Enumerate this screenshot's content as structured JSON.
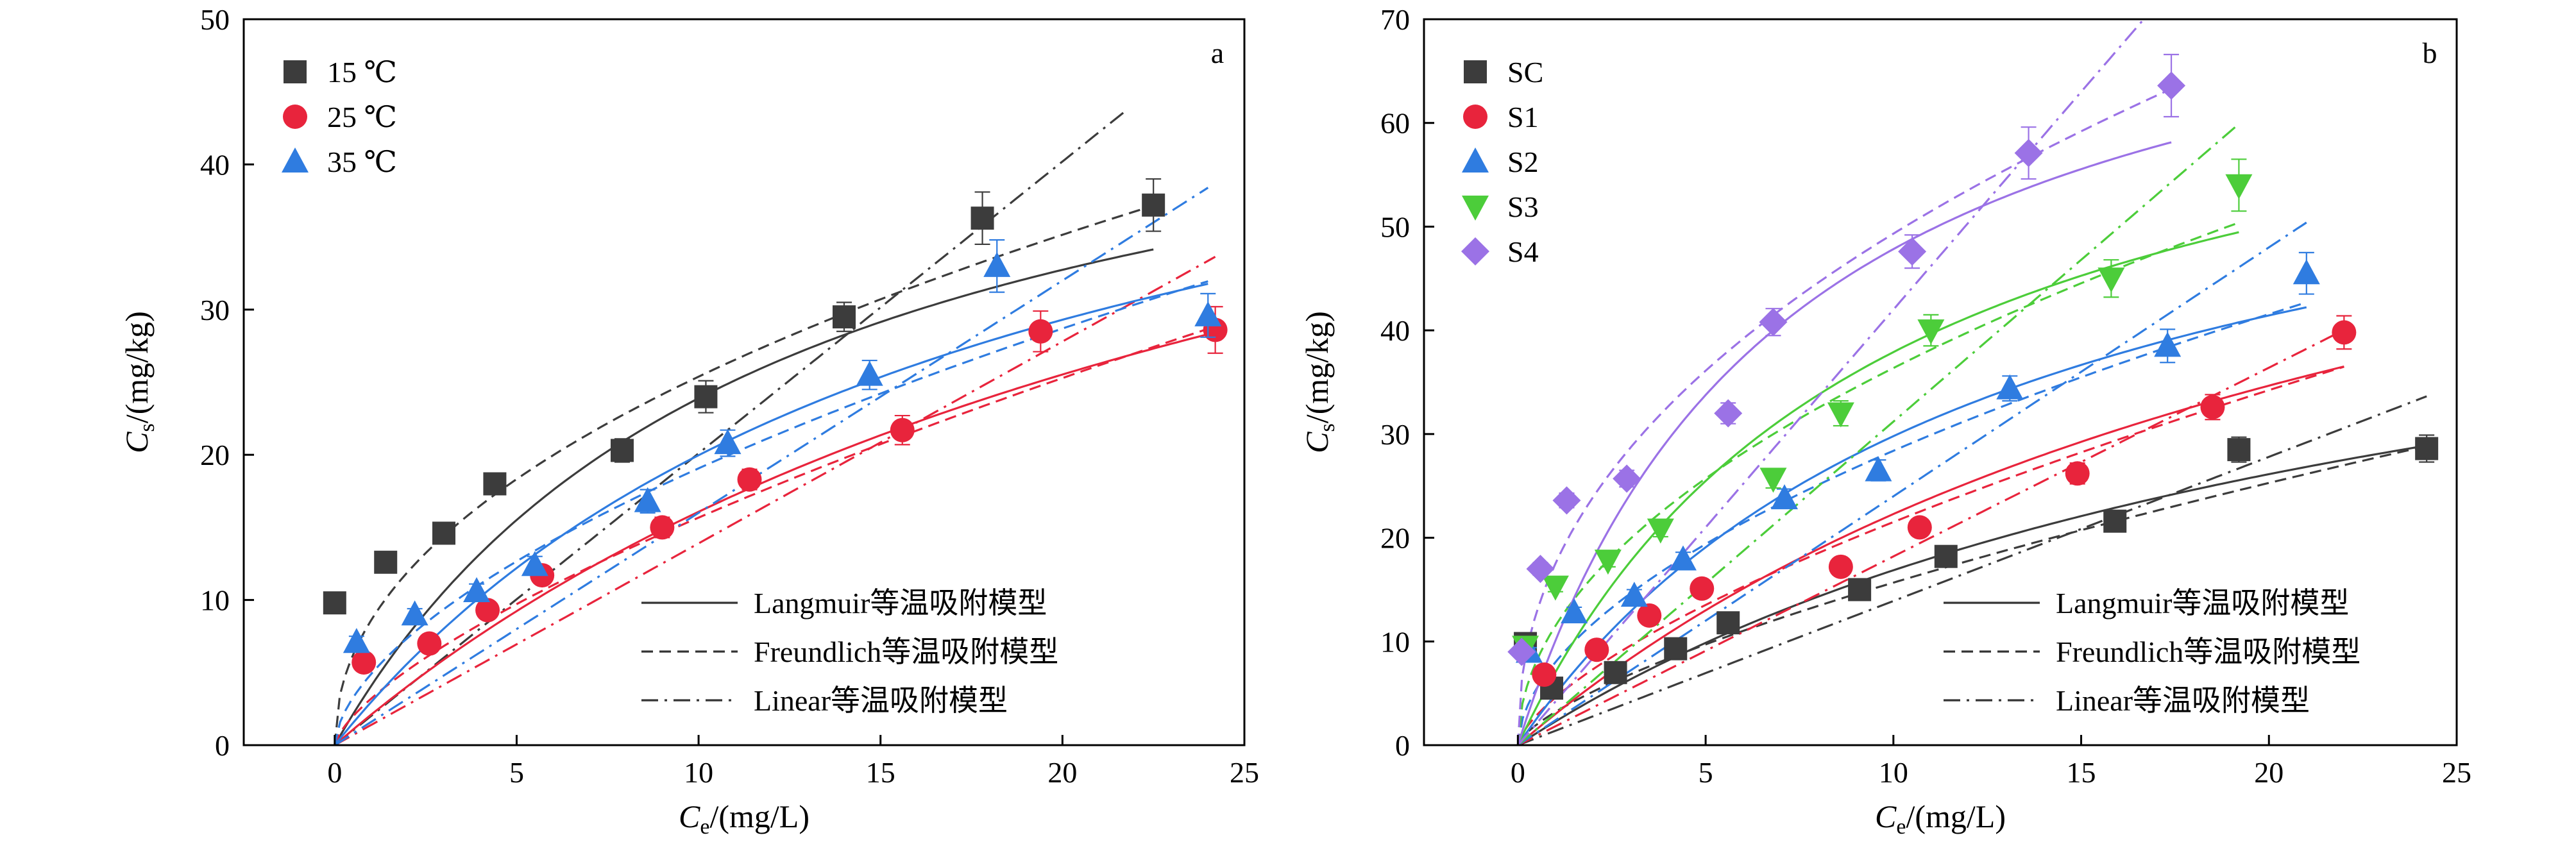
{
  "figure": {
    "caption": ""
  },
  "line_styles": {
    "Langmuir": {
      "dash": ""
    },
    "Freundlich": {
      "dash": "18,10"
    },
    "Linear": {
      "dash": "26,10,4,10"
    }
  },
  "chart_data": [
    {
      "id": "a",
      "type": "scatter",
      "panel_label": "a",
      "xlabel": {
        "main": "C",
        "sub": "e",
        "rest": "/(mg/L)"
      },
      "ylabel": {
        "main": "C",
        "sub": "s",
        "rest": "/(mg/kg)"
      },
      "xlim": [
        -2.5,
        25
      ],
      "ylim": [
        0,
        50
      ],
      "xticks": [
        0,
        5,
        10,
        15,
        20,
        25
      ],
      "yticks": [
        0,
        10,
        20,
        30,
        40,
        50
      ],
      "grid": false,
      "legend_placement": "top-left",
      "model_legend_placement": "bottom-right",
      "model_legend": [
        "Langmuir等温吸附模型",
        "Freundlich等温吸附模型",
        "Linear等温吸附模型"
      ],
      "series": [
        {
          "name": "15 ℃",
          "marker": "square",
          "color": "#3c3c3c",
          "points": [
            [
              0.0,
              9.8
            ],
            [
              1.4,
              12.6
            ],
            [
              3.0,
              14.6
            ],
            [
              4.4,
              18.0
            ],
            [
              7.9,
              20.3
            ],
            [
              10.2,
              24.0
            ],
            [
              14.0,
              29.5
            ],
            [
              17.8,
              36.3
            ],
            [
              22.5,
              37.2
            ]
          ],
          "errors": [
            0.4,
            0.4,
            0.5,
            0.7,
            0.8,
            1.1,
            1.0,
            1.8,
            1.8
          ],
          "fits": {
            "Langmuir": {
              "Qmax": 52.0,
              "K": 0.085,
              "xmax": 22.5
            },
            "Freundlich": {
              "Kf": 8.6,
              "n": 0.47,
              "xmax": 22.5
            },
            "Linear": {
              "Kd": 2.01,
              "xmax": 21.7
            }
          }
        },
        {
          "name": "25 ℃",
          "marker": "circle",
          "color": "#e8243c",
          "points": [
            [
              0.8,
              5.7
            ],
            [
              2.6,
              7.0
            ],
            [
              4.2,
              9.3
            ],
            [
              5.7,
              11.7
            ],
            [
              9.0,
              15.0
            ],
            [
              11.4,
              18.3
            ],
            [
              15.6,
              21.7
            ],
            [
              19.4,
              28.5
            ],
            [
              24.2,
              28.6
            ]
          ],
          "errors": [
            0.4,
            0.4,
            0.5,
            0.6,
            0.7,
            0.7,
            1.0,
            1.4,
            1.6
          ],
          "fits": {
            "Langmuir": {
              "Qmax": 62.0,
              "K": 0.035,
              "xmax": 24.2
            },
            "Freundlich": {
              "Kf": 3.2,
              "n": 0.69,
              "xmax": 24.2
            },
            "Linear": {
              "Kd": 1.39,
              "xmax": 24.2
            }
          }
        },
        {
          "name": "35 ℃",
          "marker": "triangle-up",
          "color": "#2f7ce0",
          "points": [
            [
              0.6,
              7.1
            ],
            [
              2.2,
              9.0
            ],
            [
              3.9,
              10.6
            ],
            [
              5.5,
              12.4
            ],
            [
              8.6,
              16.8
            ],
            [
              10.8,
              20.8
            ],
            [
              14.7,
              25.5
            ],
            [
              18.2,
              33.0
            ],
            [
              24.0,
              29.6
            ]
          ],
          "errors": [
            0.4,
            0.4,
            0.5,
            0.6,
            0.8,
            0.9,
            1.0,
            1.8,
            1.5
          ],
          "fits": {
            "Langmuir": {
              "Qmax": 55.0,
              "K": 0.057,
              "xmax": 24.0
            },
            "Freundlich": {
              "Kf": 4.9,
              "n": 0.59,
              "xmax": 24.0
            },
            "Linear": {
              "Kd": 1.6,
              "xmax": 24.0
            }
          }
        }
      ]
    },
    {
      "id": "b",
      "type": "scatter",
      "panel_label": "b",
      "xlabel": {
        "main": "C",
        "sub": "e",
        "rest": "/(mg/L)"
      },
      "ylabel": {
        "main": "C",
        "sub": "s",
        "rest": "/(mg/kg)"
      },
      "xlim": [
        -2.5,
        25
      ],
      "ylim": [
        0,
        70
      ],
      "xticks": [
        0,
        5,
        10,
        15,
        20,
        25
      ],
      "yticks": [
        0,
        10,
        20,
        30,
        40,
        50,
        60,
        70
      ],
      "grid": false,
      "legend_placement": "top-left",
      "model_legend_placement": "bottom-right",
      "model_legend": [
        "Langmuir等温吸附模型",
        "Freundlich等温吸附模型",
        "Linear等温吸附模型"
      ],
      "series": [
        {
          "name": "SC",
          "marker": "square",
          "color": "#3c3c3c",
          "points": [
            [
              0.2,
              9.8
            ],
            [
              0.9,
              5.5
            ],
            [
              2.6,
              7.0
            ],
            [
              4.2,
              9.3
            ],
            [
              5.6,
              11.8
            ],
            [
              9.1,
              15.0
            ],
            [
              11.4,
              18.2
            ],
            [
              15.9,
              21.6
            ],
            [
              19.2,
              28.5
            ],
            [
              24.2,
              28.6
            ]
          ],
          "errors": [
            0.3,
            0.4,
            0.4,
            0.4,
            0.5,
            0.6,
            0.7,
            0.9,
            1.2,
            1.3
          ],
          "fits": {
            "Langmuir": {
              "Qmax": 58.0,
              "K": 0.041,
              "xmax": 24.2
            },
            "Freundlich": {
              "Kf": 3.2,
              "n": 0.69,
              "xmax": 24.2
            },
            "Linear": {
              "Kd": 1.39,
              "xmax": 24.2
            }
          }
        },
        {
          "name": "S1",
          "marker": "circle",
          "color": "#e8243c",
          "points": [
            [
              0.7,
              6.8
            ],
            [
              2.1,
              9.2
            ],
            [
              3.5,
              12.5
            ],
            [
              4.9,
              15.1
            ],
            [
              8.6,
              17.2
            ],
            [
              10.7,
              21.0
            ],
            [
              14.9,
              26.2
            ],
            [
              18.5,
              32.6
            ],
            [
              22.0,
              39.8
            ]
          ],
          "errors": [
            0.4,
            0.4,
            0.5,
            0.6,
            0.7,
            0.8,
            1.0,
            1.2,
            1.6
          ],
          "fits": {
            "Langmuir": {
              "Qmax": 78.0,
              "K": 0.04,
              "xmax": 22.0
            },
            "Freundlich": {
              "Kf": 4.6,
              "n": 0.67,
              "xmax": 22.0
            },
            "Linear": {
              "Kd": 1.82,
              "xmax": 22.0
            }
          }
        },
        {
          "name": "S2",
          "marker": "triangle-up",
          "color": "#2f7ce0",
          "points": [
            [
              0.3,
              9.0
            ],
            [
              1.5,
              12.8
            ],
            [
              3.1,
              14.4
            ],
            [
              4.4,
              17.9
            ],
            [
              7.1,
              23.8
            ],
            [
              9.6,
              26.5
            ],
            [
              13.1,
              34.4
            ],
            [
              17.3,
              38.5
            ],
            [
              21.0,
              45.5
            ]
          ],
          "errors": [
            0.4,
            0.5,
            0.6,
            0.7,
            0.9,
            1.0,
            1.2,
            1.6,
            2.0
          ],
          "fits": {
            "Langmuir": {
              "Qmax": 68.0,
              "K": 0.078,
              "xmax": 21.0
            },
            "Freundlich": {
              "Kf": 8.0,
              "n": 0.55,
              "xmax": 21.0
            },
            "Linear": {
              "Kd": 2.4,
              "xmax": 21.0
            }
          }
        },
        {
          "name": "S3",
          "marker": "triangle-down",
          "color": "#4ccd3a",
          "points": [
            [
              0.2,
              9.5
            ],
            [
              1.0,
              15.3
            ],
            [
              2.4,
              17.8
            ],
            [
              3.8,
              20.8
            ],
            [
              6.8,
              25.7
            ],
            [
              8.6,
              32.0
            ],
            [
              11.0,
              40.0
            ],
            [
              15.8,
              45.0
            ],
            [
              19.2,
              54.0
            ]
          ],
          "errors": [
            0.4,
            0.5,
            0.6,
            0.7,
            0.9,
            1.2,
            1.5,
            1.8,
            2.5
          ],
          "fits": {
            "Langmuir": {
              "Qmax": 74.0,
              "K": 0.105,
              "xmax": 19.2
            },
            "Freundlich": {
              "Kf": 11.5,
              "n": 0.5,
              "xmax": 19.2
            },
            "Linear": {
              "Kd": 3.12,
              "xmax": 19.2
            }
          }
        },
        {
          "name": "S4",
          "marker": "diamond",
          "color": "#9b72e6",
          "points": [
            [
              0.1,
              9.0
            ],
            [
              0.6,
              17.0
            ],
            [
              1.3,
              23.6
            ],
            [
              2.9,
              25.7
            ],
            [
              5.6,
              32.0
            ],
            [
              6.8,
              40.8
            ],
            [
              10.5,
              47.6
            ],
            [
              13.6,
              57.1
            ],
            [
              17.4,
              63.6
            ]
          ],
          "errors": [
            0.4,
            0.6,
            0.7,
            0.8,
            1.0,
            1.3,
            1.6,
            2.5,
            3.0
          ],
          "fits": {
            "Langmuir": {
              "Qmax": 82.0,
              "K": 0.14,
              "xmax": 17.4
            },
            "Freundlich": {
              "Kf": 17.5,
              "n": 0.45,
              "xmax": 17.4
            },
            "Linear": {
              "Kd": 4.2,
              "xmax": 16.8
            }
          }
        }
      ]
    }
  ]
}
